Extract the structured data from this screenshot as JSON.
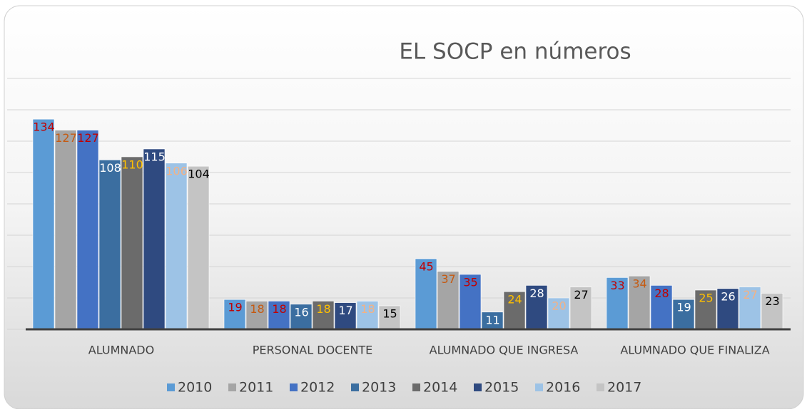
{
  "chart_data": {
    "type": "bar",
    "title": "EL SOCP en números",
    "categories": [
      "ALUMNADO",
      "PERSONAL DOCENTE",
      "ALUMNADO QUE INGRESA",
      "ALUMNADO QUE FINALIZA"
    ],
    "series": [
      {
        "name": "2010",
        "color": "#5b9bd5",
        "label_color": "#c00000",
        "values": [
          134,
          19,
          45,
          33
        ]
      },
      {
        "name": "2011",
        "color": "#a5a5a5",
        "label_color": "#c55a11",
        "values": [
          127,
          18,
          37,
          34
        ]
      },
      {
        "name": "2012",
        "color": "#4472c4",
        "label_color": "#c00000",
        "values": [
          127,
          18,
          35,
          28
        ]
      },
      {
        "name": "2013",
        "color": "#3b6ea0",
        "label_color": "#ffffff",
        "values": [
          108,
          16,
          11,
          19
        ]
      },
      {
        "name": "2014",
        "color": "#6b6b6b",
        "label_color": "#ffc000",
        "values": [
          110,
          18,
          24,
          25
        ]
      },
      {
        "name": "2015",
        "color": "#2f4a80",
        "label_color": "#ffffff",
        "values": [
          115,
          17,
          28,
          26
        ]
      },
      {
        "name": "2016",
        "color": "#9dc3e6",
        "label_color": "#f4b183",
        "values": [
          106,
          18,
          20,
          27
        ]
      },
      {
        "name": "2017",
        "color": "#c4c4c4",
        "label_color": "#000000",
        "values": [
          104,
          15,
          27,
          23
        ]
      }
    ],
    "ylim": [
      0,
      160
    ],
    "yticks": [
      0,
      20,
      40,
      60,
      80,
      100,
      120,
      140,
      160
    ],
    "grid": true,
    "legend": "bottom"
  }
}
